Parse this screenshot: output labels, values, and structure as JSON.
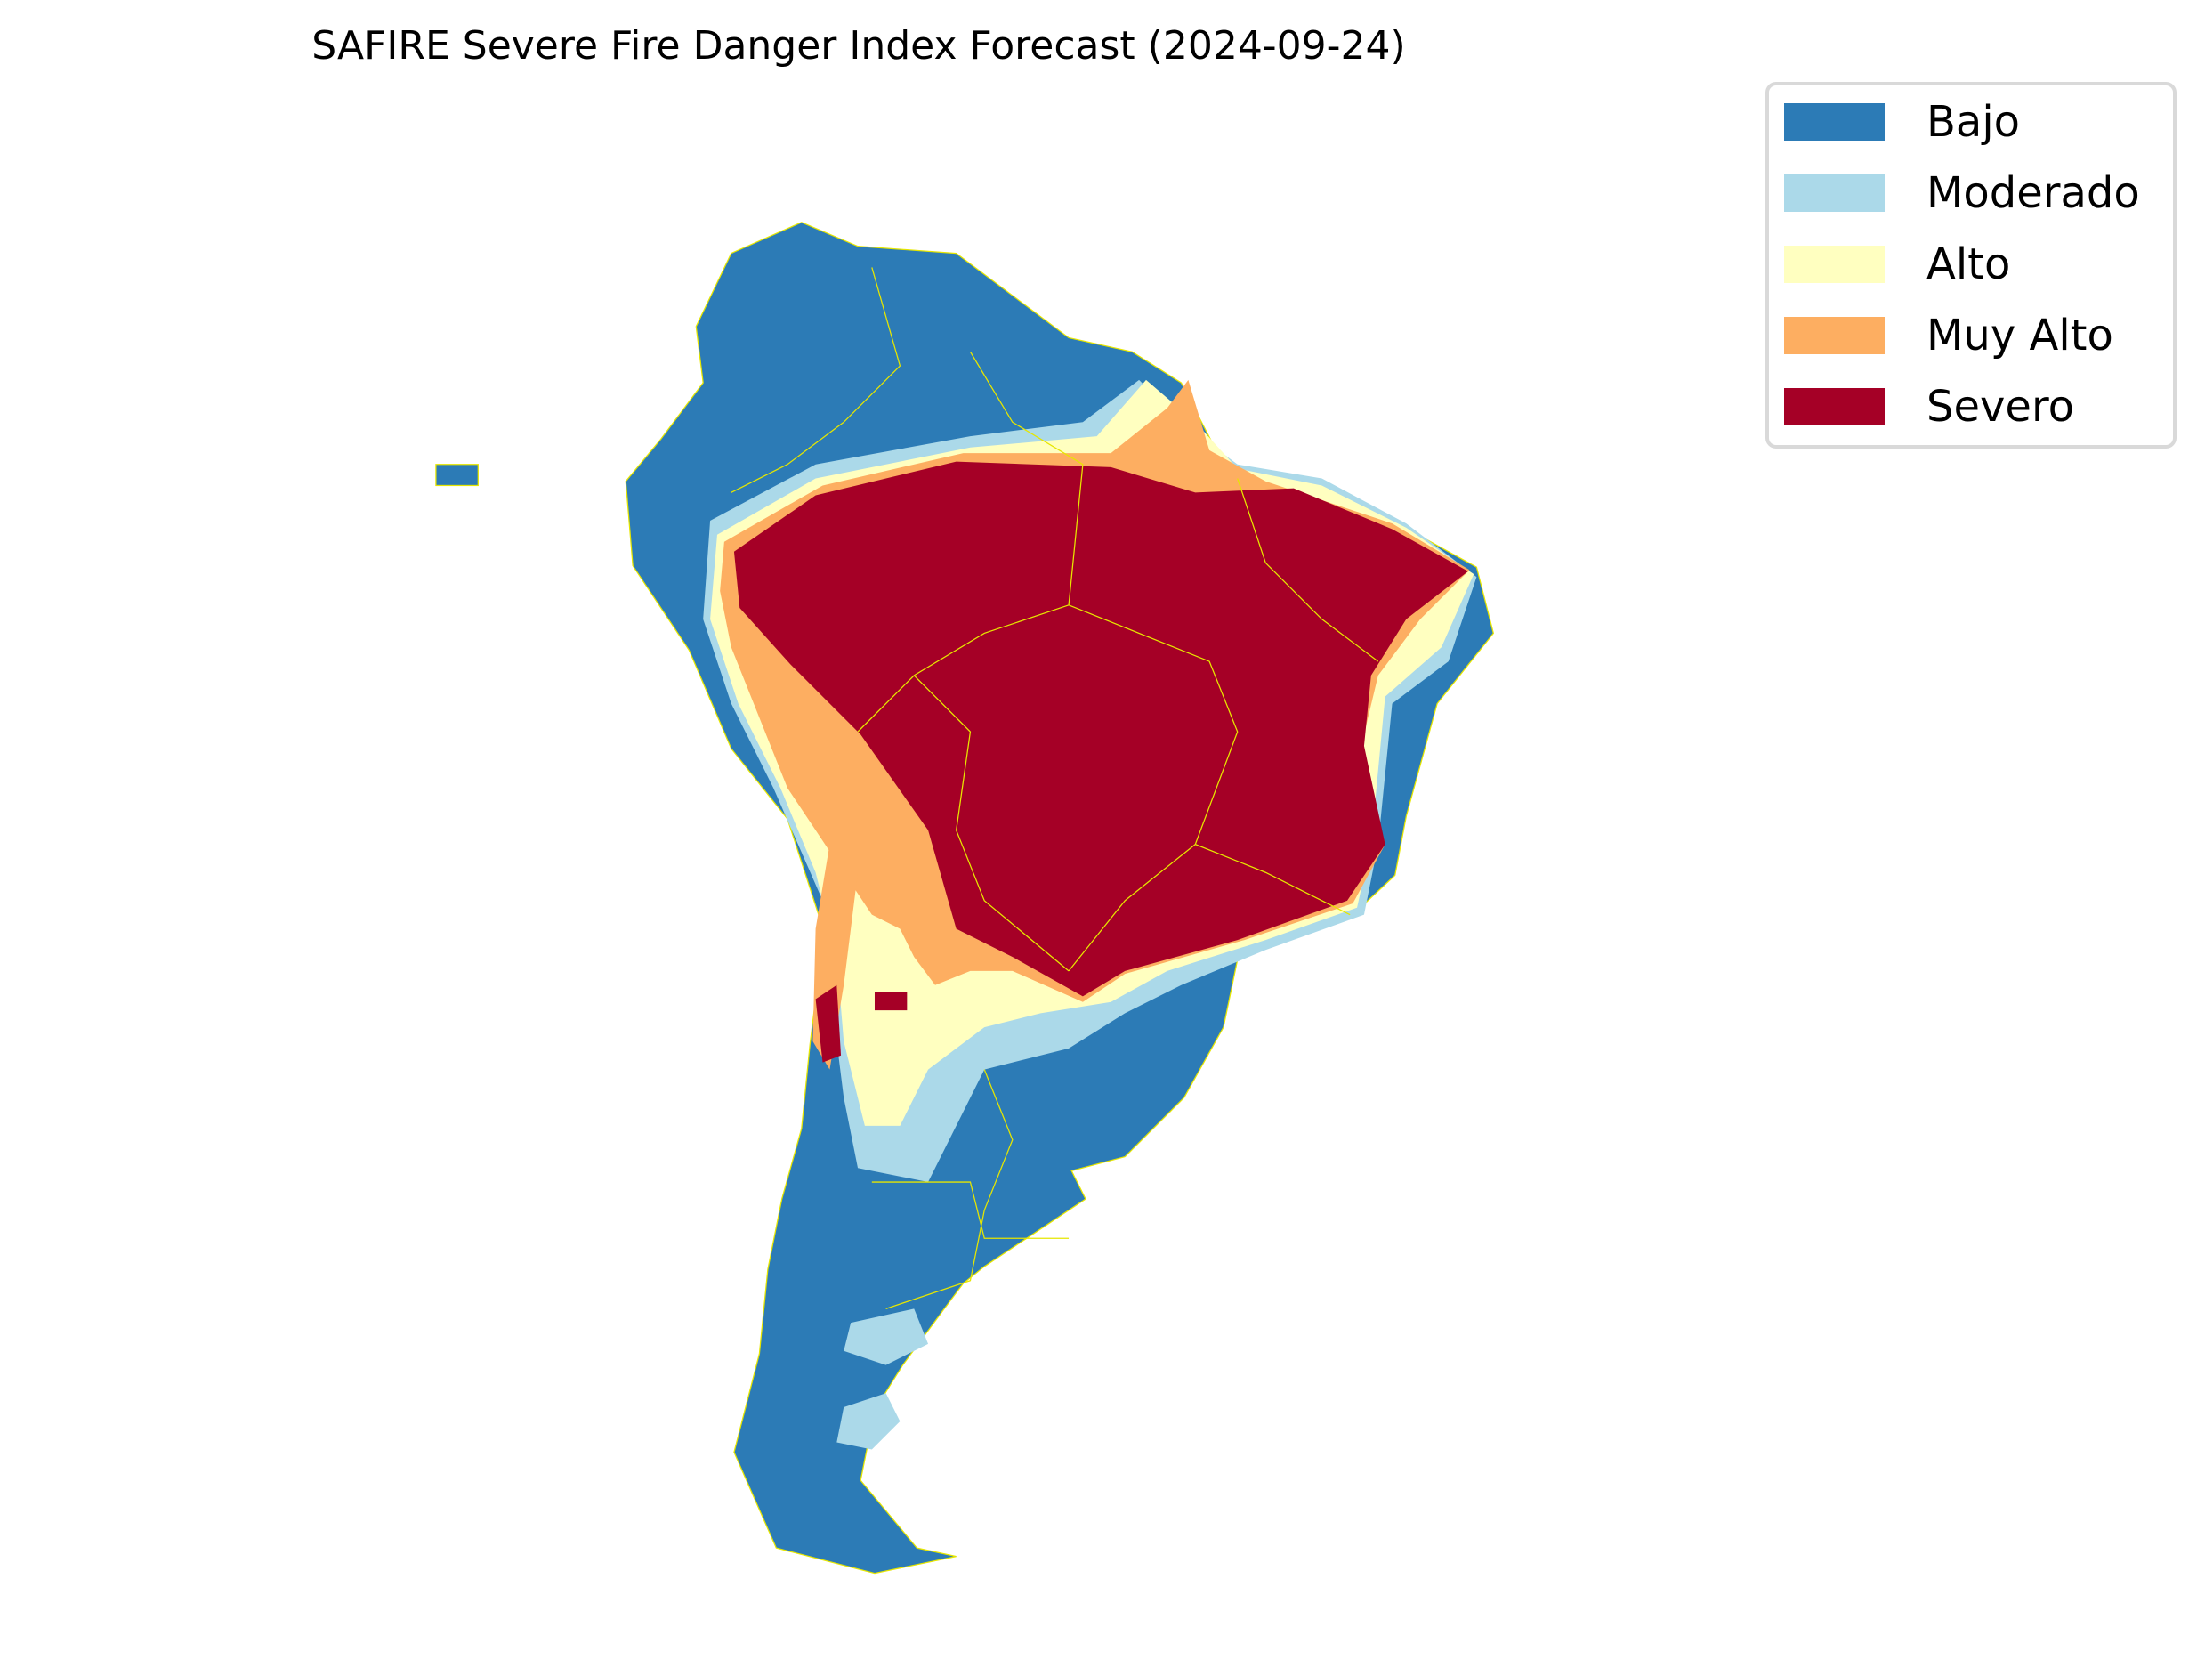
{
  "title": "SAFIRE Severe Fire Danger Index Forecast (2024-09-24)",
  "legend": [
    {
      "label": "Bajo",
      "color": "#2c7bb6"
    },
    {
      "label": "Moderado",
      "color": "#abd9e9"
    },
    {
      "label": "Alto",
      "color": "#ffffc0"
    },
    {
      "label": "Muy Alto",
      "color": "#fdae61"
    },
    {
      "label": "Severo",
      "color": "#a50026"
    }
  ],
  "border_color": "#e6e600"
}
